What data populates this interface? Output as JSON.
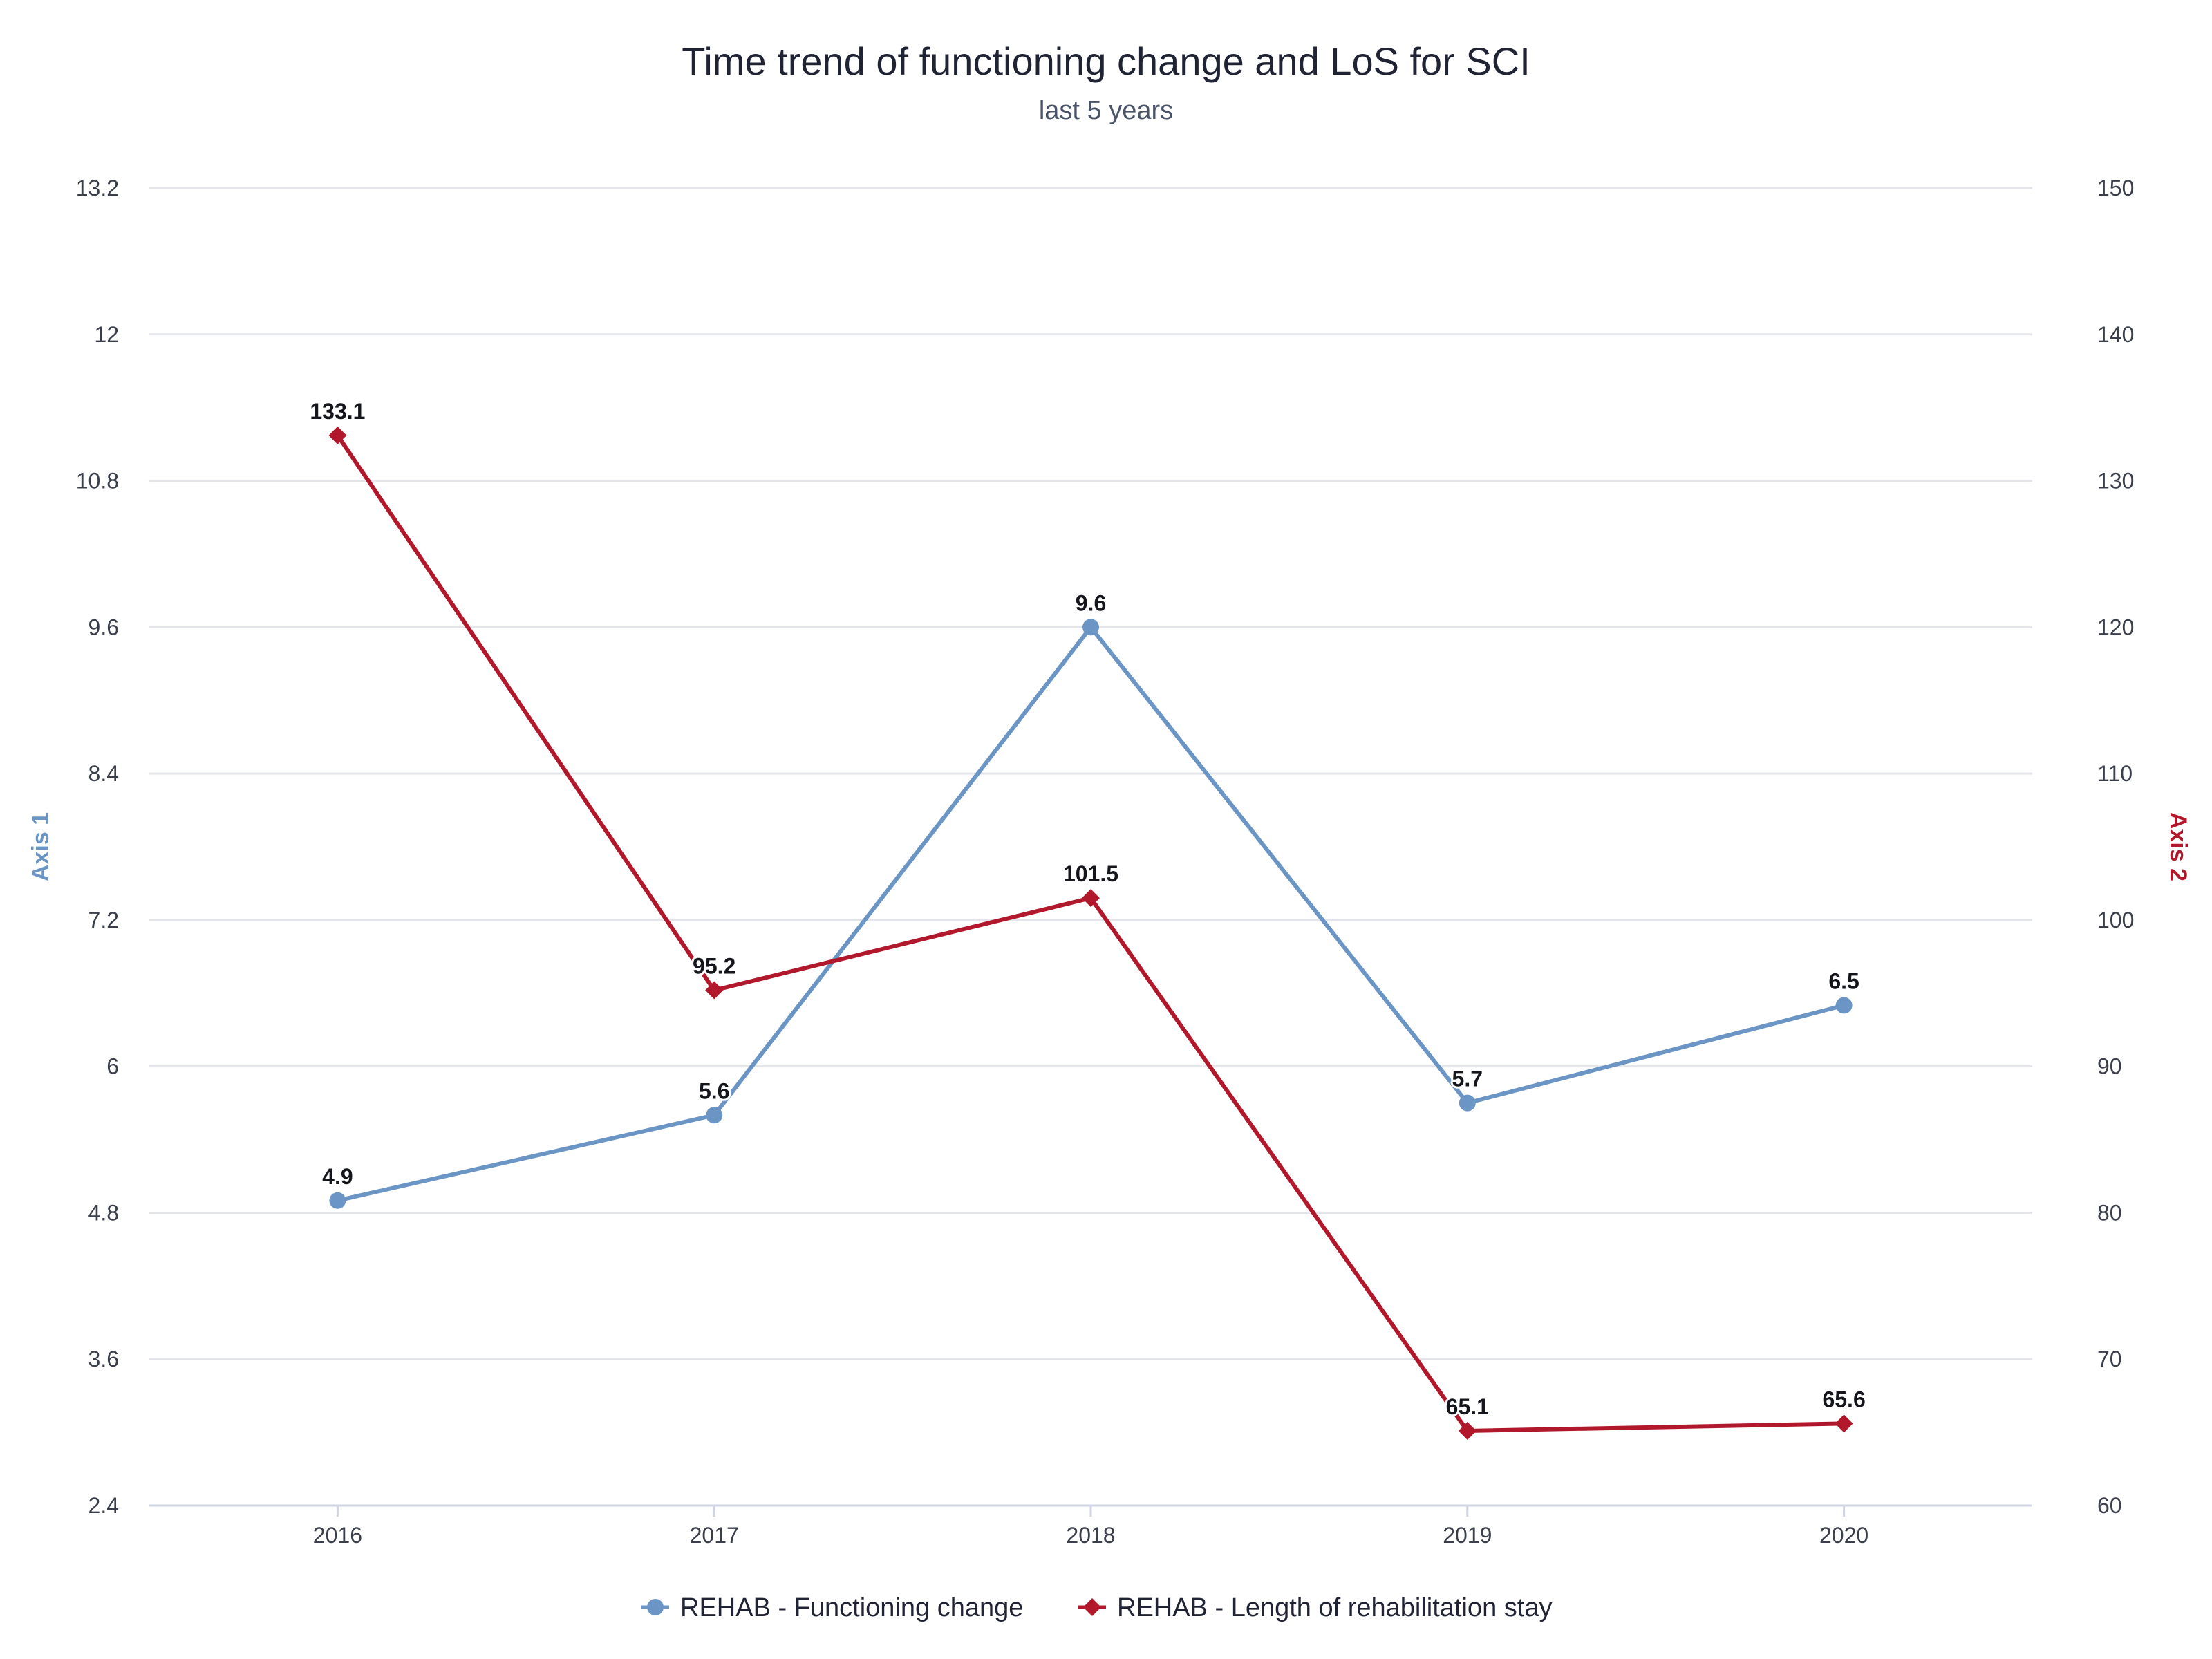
{
  "colors": {
    "series1": "#6a95c4",
    "series2": "#b2182b",
    "grid": "#e3e5ea",
    "text": "#1f2333"
  },
  "chart_data": {
    "type": "line",
    "title": "Time trend of functioning change and LoS for SCI",
    "subtitle": "last 5 years",
    "categories": [
      "2016",
      "2017",
      "2018",
      "2019",
      "2020"
    ],
    "grid": true,
    "legend_position": "bottom",
    "y_axes": [
      {
        "id": "axis1",
        "title": "Axis 1",
        "side": "left",
        "range": [
          2.4,
          13.2
        ],
        "ticks": [
          "2.4",
          "3.6",
          "4.8",
          "6",
          "7.2",
          "8.4",
          "9.6",
          "10.8",
          "12",
          "13.2"
        ],
        "color": "#6a95c4"
      },
      {
        "id": "axis2",
        "title": "Axis 2",
        "side": "right",
        "range": [
          60,
          150
        ],
        "ticks": [
          "60",
          "70",
          "80",
          "90",
          "100",
          "110",
          "120",
          "130",
          "140",
          "150"
        ],
        "color": "#b2182b"
      }
    ],
    "series": [
      {
        "name": "REHAB - Functioning change",
        "axis": "axis1",
        "marker": "circle",
        "color": "#6a95c4",
        "values": [
          4.9,
          5.6,
          9.6,
          5.7,
          6.5
        ],
        "labels": [
          "4.9",
          "5.6",
          "9.6",
          "5.7",
          "6.5"
        ]
      },
      {
        "name": "REHAB - Length of rehabilitation stay",
        "axis": "axis2",
        "marker": "diamond",
        "color": "#b2182b",
        "values": [
          133.1,
          95.2,
          101.5,
          65.1,
          65.6
        ],
        "labels": [
          "133.1",
          "95.2",
          "101.5",
          "65.1",
          "65.6"
        ]
      }
    ]
  }
}
